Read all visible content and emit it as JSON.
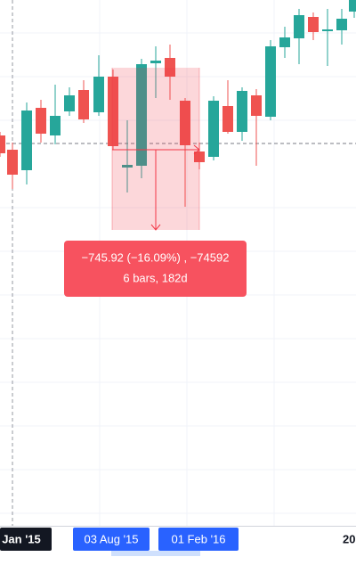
{
  "time_axis": {
    "labels": [
      "Jan '15",
      "03 Aug '15",
      "01 Feb '16",
      "20"
    ]
  },
  "measure": {
    "line1": "−745.92 (−16.09%) , −74592",
    "line2": "6 bars, 182d"
  }
}
